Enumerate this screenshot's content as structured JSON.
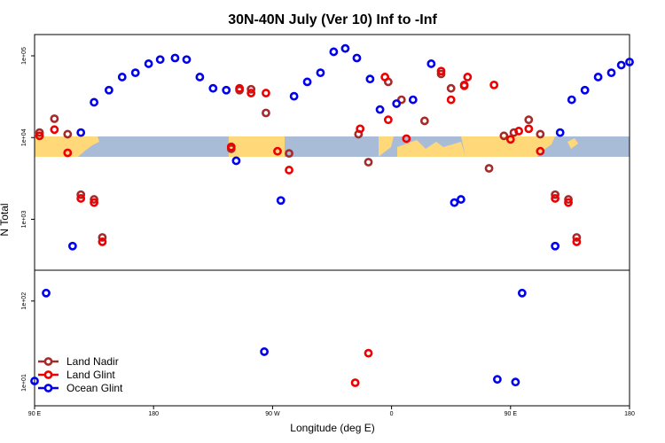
{
  "chart_data": {
    "type": "scatter",
    "title": "30N-40N July (Ver 10)   Inf to -Inf",
    "xlabel": "Longitude (deg E)",
    "ylabel": "N Total",
    "y_scale": "log",
    "xlim": [
      0,
      360
    ],
    "x_ticks": [
      {
        "value": 0,
        "label": "90 E"
      },
      {
        "value": 72,
        "label": "180"
      },
      {
        "value": 144,
        "label": "90 W"
      },
      {
        "value": 216,
        "label": "0"
      },
      {
        "value": 288,
        "label": "90 E"
      },
      {
        "value": 360,
        "label": "180"
      }
    ],
    "y_ticks": [
      {
        "value": 10,
        "label": "1e+01"
      },
      {
        "value": 100,
        "label": "1e+02"
      },
      {
        "value": 1000,
        "label": "1e+03"
      },
      {
        "value": 10000,
        "label": "1e+04"
      },
      {
        "value": 100000,
        "label": "1e+05"
      }
    ],
    "legend_position": "bottom-left",
    "series": [
      {
        "name": "Land Nadir",
        "color": "#a52a2a",
        "points": [
          [
            3,
            11500
          ],
          [
            12,
            17000
          ],
          [
            20,
            11000
          ],
          [
            28,
            2000
          ],
          [
            36,
            1750
          ],
          [
            41,
            600
          ],
          [
            119,
            7300
          ],
          [
            124,
            38000
          ],
          [
            131,
            39000
          ],
          [
            140,
            20000
          ],
          [
            154,
            6400
          ],
          [
            196,
            11000
          ],
          [
            214,
            48000
          ],
          [
            222,
            29000
          ],
          [
            236,
            16000
          ],
          [
            246,
            60000
          ],
          [
            252,
            40000
          ],
          [
            260,
            44000
          ],
          [
            275,
            4200
          ],
          [
            284,
            10500
          ],
          [
            290,
            11500
          ],
          [
            299,
            16500
          ],
          [
            306,
            11000
          ],
          [
            315,
            2000
          ],
          [
            323,
            1750
          ],
          [
            328,
            600
          ],
          [
            202,
            5000
          ]
        ]
      },
      {
        "name": "Land Glint",
        "color": "#ee0000",
        "points": [
          [
            3,
            10500
          ],
          [
            12,
            12500
          ],
          [
            20,
            6500
          ],
          [
            28,
            1800
          ],
          [
            36,
            1600
          ],
          [
            41,
            530
          ],
          [
            119,
            7700
          ],
          [
            124,
            40000
          ],
          [
            131,
            35000
          ],
          [
            140,
            35000
          ],
          [
            147,
            6800
          ],
          [
            154,
            4000
          ],
          [
            197,
            12800
          ],
          [
            212,
            55000
          ],
          [
            214,
            16500
          ],
          [
            225,
            9700
          ],
          [
            246,
            65000
          ],
          [
            252,
            29000
          ],
          [
            260,
            43000
          ],
          [
            262,
            55000
          ],
          [
            278,
            44000
          ],
          [
            288,
            9500
          ],
          [
            293,
            12000
          ],
          [
            299,
            12800
          ],
          [
            306,
            6800
          ],
          [
            315,
            1800
          ],
          [
            323,
            1600
          ],
          [
            328,
            530
          ],
          [
            194,
            10
          ],
          [
            202,
            23
          ]
        ]
      },
      {
        "name": "Ocean Glint",
        "color": "#0000ee",
        "points": [
          [
            0,
            10.5
          ],
          [
            7,
            125
          ],
          [
            23,
            470
          ],
          [
            28,
            11500
          ],
          [
            36,
            27000
          ],
          [
            45,
            38000
          ],
          [
            53,
            55000
          ],
          [
            61,
            62000
          ],
          [
            69,
            80000
          ],
          [
            76,
            90000
          ],
          [
            85,
            94000
          ],
          [
            92,
            90000
          ],
          [
            100,
            55000
          ],
          [
            108,
            40000
          ],
          [
            116,
            38000
          ],
          [
            122,
            5200
          ],
          [
            139,
            24
          ],
          [
            149,
            1700
          ],
          [
            157,
            32000
          ],
          [
            165,
            48000
          ],
          [
            173,
            62000
          ],
          [
            181,
            112000
          ],
          [
            188,
            123000
          ],
          [
            195,
            94000
          ],
          [
            203,
            52000
          ],
          [
            209,
            22000
          ],
          [
            219,
            26000
          ],
          [
            229,
            29000
          ],
          [
            240,
            80000
          ],
          [
            254,
            1600
          ],
          [
            258,
            1750
          ],
          [
            280,
            11
          ],
          [
            291,
            10.2
          ],
          [
            295,
            125
          ],
          [
            315,
            470
          ],
          [
            318,
            11500
          ],
          [
            325,
            29000
          ],
          [
            333,
            38000
          ],
          [
            341,
            55000
          ],
          [
            349,
            62000
          ],
          [
            355,
            77000
          ],
          [
            363,
            84000
          ]
        ]
      }
    ],
    "land_strip_label": "continents"
  }
}
